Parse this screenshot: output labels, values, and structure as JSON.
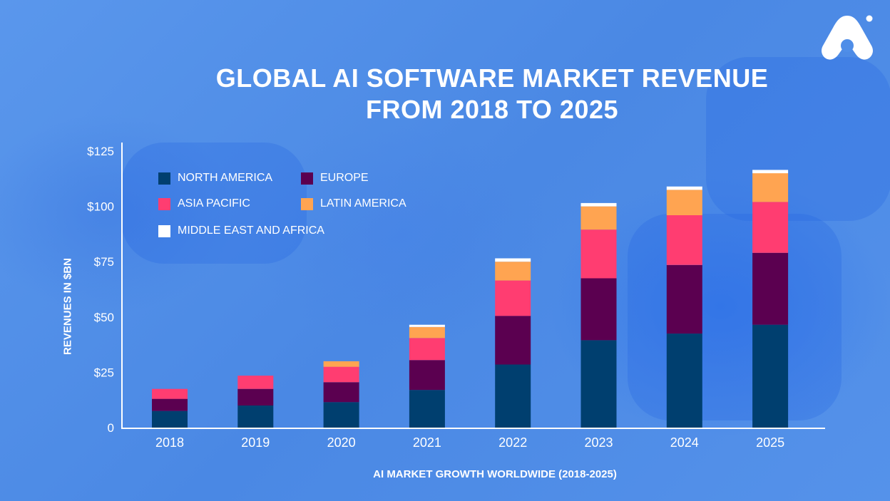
{
  "chart_data": {
    "type": "bar",
    "stacked": true,
    "title_lines": [
      "GLOBAL AI SOFTWARE MARKET REVENUE",
      "FROM 2018 TO 2025"
    ],
    "xlabel": "AI MARKET GROWTH WORLDWIDE (2018-2025)",
    "ylabel": "REVENUES IN $BN",
    "ylim": [
      0,
      125
    ],
    "yticks": [
      0,
      25,
      50,
      75,
      100,
      125
    ],
    "ytick_labels": [
      "0",
      "$25",
      "$50",
      "$75",
      "$100",
      "$125"
    ],
    "grid": false,
    "legend_position": "top-left",
    "categories": [
      "2018",
      "2019",
      "2020",
      "2021",
      "2022",
      "2023",
      "2024",
      "2025"
    ],
    "series": [
      {
        "name": "NORTH AMERICA",
        "color": "#003f6f",
        "values": [
          7.5,
          10,
          11.5,
          17,
          28.5,
          39.5,
          42.5,
          46.5
        ]
      },
      {
        "name": "EUROPE",
        "color": "#5b0050",
        "values": [
          5.5,
          7.5,
          9,
          13.5,
          22,
          28,
          31,
          32.5
        ]
      },
      {
        "name": "ASIA PACIFIC",
        "color": "#ff3d71",
        "values": [
          4.5,
          6,
          7,
          10,
          16,
          22,
          22.5,
          23
        ]
      },
      {
        "name": "LATIN AMERICA",
        "color": "#ffa451",
        "values": [
          0,
          0,
          2.5,
          5,
          8.5,
          10.5,
          11.5,
          13
        ]
      },
      {
        "name": "MIDDLE EAST AND AFRICA",
        "color": "#ffffff",
        "values": [
          0,
          0,
          0,
          1,
          1.5,
          1.5,
          1.5,
          1.5
        ]
      }
    ]
  }
}
